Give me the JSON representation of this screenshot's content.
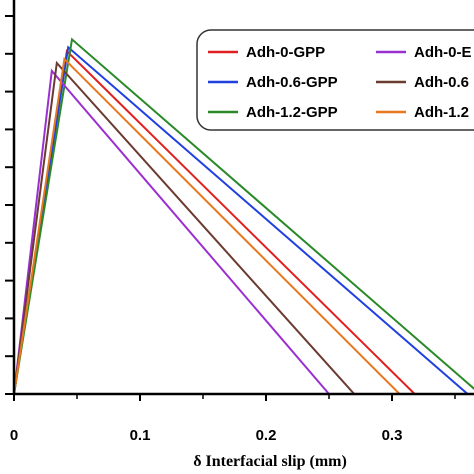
{
  "chart_data": {
    "type": "line",
    "xlabel": "δ Interfacial slip (mm)",
    "ylabel": "",
    "title": "",
    "xlim": [
      0,
      0.36
    ],
    "ylim": [
      0,
      1.0
    ],
    "x_ticks": [
      "0",
      "0.1",
      "0.2",
      "0.3"
    ],
    "x_tick_values": [
      0,
      0.1,
      0.2,
      0.3
    ],
    "y_tick_count": 11,
    "grid": false,
    "legend_position": "top-right",
    "series": [
      {
        "name": "Adh-0-GPP",
        "color": "#e02020",
        "x": [
          0,
          0.042,
          0.318
        ],
        "y": [
          0,
          0.87,
          0
        ]
      },
      {
        "name": "Adh-0.6-GPP",
        "color": "#2040e0",
        "x": [
          0,
          0.043,
          0.36
        ],
        "y": [
          0,
          0.88,
          0
        ]
      },
      {
        "name": "Adh-1.2-GPP",
        "color": "#2a8a2a",
        "x": [
          0,
          0.046,
          0.37
        ],
        "y": [
          0,
          0.9,
          0
        ]
      },
      {
        "name": "Adh-0-E",
        "color": "#9b30d0",
        "x": [
          0,
          0.03,
          0.25
        ],
        "y": [
          0,
          0.82,
          0
        ]
      },
      {
        "name": "Adh-0.6",
        "color": "#6b3a30",
        "x": [
          0,
          0.034,
          0.27
        ],
        "y": [
          0,
          0.84,
          0
        ]
      },
      {
        "name": "Adh-1.2",
        "color": "#e87820",
        "x": [
          0,
          0.04,
          0.306
        ],
        "y": [
          0,
          0.85,
          0
        ]
      }
    ]
  }
}
